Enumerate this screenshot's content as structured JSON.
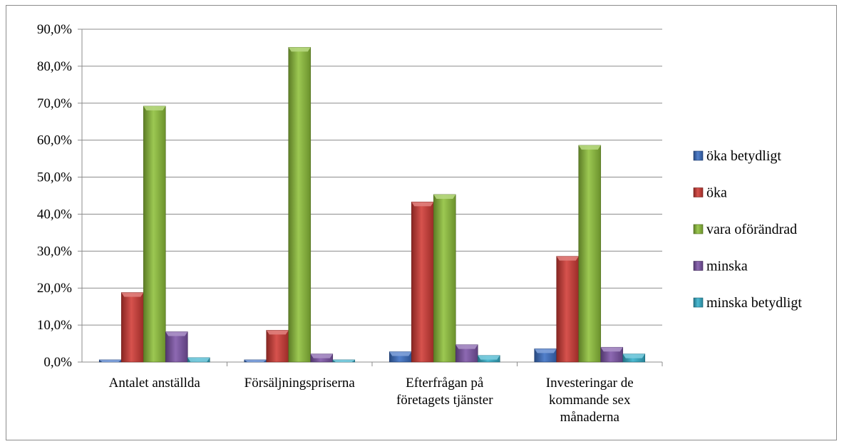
{
  "chart_data": {
    "type": "bar",
    "categories": [
      "Antalet anställda",
      "Försäljningspriserna",
      "Efterfrågan på företagets tjänster",
      "Investeringar de kommande sex månaderna"
    ],
    "category_label_lines": [
      [
        "Antalet anställda"
      ],
      [
        "Försäljningspriserna"
      ],
      [
        "Efterfrågan på",
        "företagets tjänster"
      ],
      [
        "Investeringar de",
        "kommande sex",
        "månaderna"
      ]
    ],
    "series": [
      {
        "name": "öka betydligt",
        "color": "#3a6fc4",
        "values": [
          0.6,
          0.6,
          2.8,
          3.6
        ]
      },
      {
        "name": "öka",
        "color": "#d03a35",
        "values": [
          18.8,
          8.6,
          43.3,
          28.6
        ]
      },
      {
        "name": "vara oförändrad",
        "color": "#8fc13a",
        "values": [
          69.2,
          85.1,
          45.3,
          58.6
        ]
      },
      {
        "name": "minska",
        "color": "#7d55a8",
        "values": [
          8.2,
          2.2,
          4.7,
          4.0
        ]
      },
      {
        "name": "minska betydligt",
        "color": "#35b1cc",
        "values": [
          1.2,
          0.6,
          1.8,
          2.2
        ]
      }
    ],
    "y_ticks": [
      "0,0%",
      "10,0%",
      "20,0%",
      "30,0%",
      "40,0%",
      "50,0%",
      "60,0%",
      "70,0%",
      "80,0%",
      "90,0%"
    ],
    "ylim": [
      0,
      90
    ],
    "grid": true,
    "legend_position": "right",
    "title": "",
    "xlabel": "",
    "ylabel": ""
  }
}
